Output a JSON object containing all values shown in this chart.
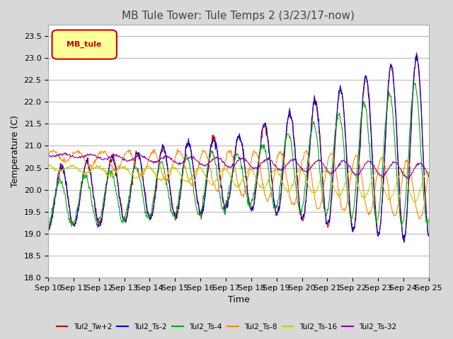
{
  "title": "MB Tule Tower: Tule Temps 2 (3/23/17-now)",
  "xlabel": "Time",
  "ylabel": "Temperature (C)",
  "ylim": [
    18.0,
    23.75
  ],
  "yticks": [
    18.0,
    18.5,
    19.0,
    19.5,
    20.0,
    20.5,
    21.0,
    21.5,
    22.0,
    22.5,
    23.0,
    23.5
  ],
  "x_labels": [
    "Sep 10",
    "Sep 11",
    "Sep 12",
    "Sep 13",
    "Sep 14",
    "Sep 15",
    "Sep 16",
    "Sep 17",
    "Sep 18",
    "Sep 19",
    "Sep 20",
    "Sep 21",
    "Sep 22",
    "Sep 23",
    "Sep 24",
    "Sep 25"
  ],
  "legend_label": "MB_tule",
  "legend_bg": "#ffff99",
  "legend_border": "#cc0000",
  "series_colors": {
    "Tul2_Tw+2": "#cc0000",
    "Tul2_Ts-2": "#0000cc",
    "Tul2_Ts-4": "#00aa00",
    "Tul2_Ts-8": "#ff8800",
    "Tul2_Ts-16": "#cccc00",
    "Tul2_Ts-32": "#8800aa"
  },
  "background_color": "#d8d8d8",
  "plot_bg": "#ffffff",
  "grid_color": "#bbbbbb",
  "title_fontsize": 11,
  "axis_fontsize": 9,
  "tick_fontsize": 8
}
